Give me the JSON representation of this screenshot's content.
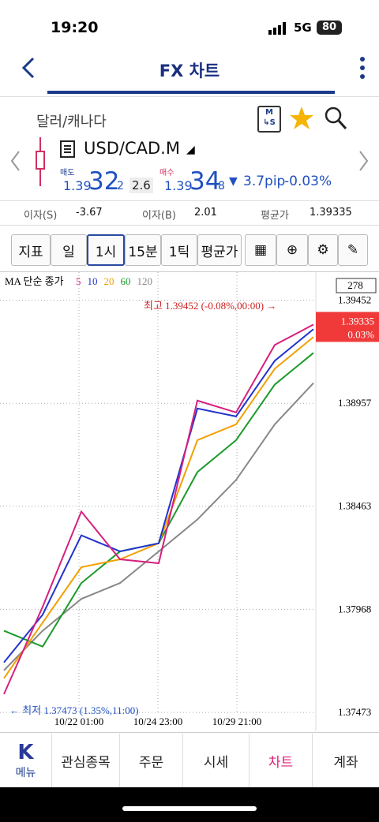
{
  "status_bar": {
    "time": "19:20",
    "network": "5G",
    "battery": "80"
  },
  "header": {
    "title": "FX 차트"
  },
  "instrument": {
    "name": "달러/캐나다",
    "symbol": "USD/CAD.M"
  },
  "quote": {
    "bid_label": "매도",
    "bid_prefix": "1.39",
    "bid_big": "32",
    "bid_suffix": "2",
    "spread": "2.6",
    "ask_label": "매수",
    "ask_prefix": "1.39",
    "ask_big": "34",
    "ask_suffix": "8",
    "change_pip": "3.7pip",
    "change_pct": "-0.03%"
  },
  "info": [
    {
      "label": "이자(S)",
      "value": "-3.67"
    },
    {
      "label": "이자(B)",
      "value": "2.01"
    },
    {
      "label": "평균가",
      "value": "1.39335"
    }
  ],
  "toolbar": [
    "지표",
    "일",
    "1시",
    "15분",
    "1틱",
    "평균가"
  ],
  "chart": {
    "legend_title": "MA 단순 종가",
    "count": "278",
    "series": [
      {
        "name": "5",
        "color": "#d6207f",
        "values": [
          1.37561,
          1.3798,
          1.38437,
          1.38208,
          1.38189,
          1.3897,
          1.38913,
          1.39237,
          1.39335
        ]
      },
      {
        "name": "10",
        "color": "#2233cc",
        "values": [
          1.37713,
          1.37942,
          1.38323,
          1.38246,
          1.38285,
          1.38932,
          1.38894,
          1.39161,
          1.39313
        ]
      },
      {
        "name": "20",
        "color": "#f0a000",
        "values": [
          1.37637,
          1.37904,
          1.3817,
          1.38208,
          1.38285,
          1.3878,
          1.38856,
          1.39123,
          1.39275
        ]
      },
      {
        "name": "60",
        "color": "#1a9a2a",
        "values": [
          1.37865,
          1.37789,
          1.38094,
          1.38246,
          1.38285,
          1.38627,
          1.3878,
          1.39047,
          1.39199
        ]
      },
      {
        "name": "120",
        "color": "#888888",
        "values": [
          1.37675,
          1.37865,
          1.38018,
          1.38094,
          1.38246,
          1.38399,
          1.38589,
          1.38856,
          1.39054
        ]
      }
    ],
    "ylim": [
      1.3739,
      1.3956
    ],
    "yticks": [
      1.39452,
      1.38957,
      1.38463,
      1.37968,
      1.37473
    ],
    "x_labels": [
      "10/22 01:00",
      "10/24 23:00",
      "10/29 21:00"
    ],
    "high_note": "최고 1.39452 (-0.08%,00:00) →",
    "low_note": "← 최저 1.37473 (1.35%,11:00)",
    "last_price": 1.39335,
    "last_change": "0.03%"
  },
  "nav": [
    "메뉴",
    "관심종목",
    "주문",
    "시세",
    "차트",
    "계좌"
  ]
}
